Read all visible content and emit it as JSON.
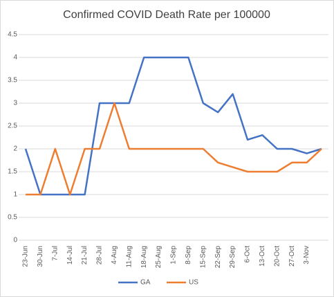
{
  "chart_data": {
    "type": "line",
    "title": "Confirmed COVID Death Rate per 100000",
    "categories": [
      "23-Jun",
      "30-Jun",
      "7-Jul",
      "14-Jul",
      "21-Jul",
      "28-Jul",
      "4-Aug",
      "11-Aug",
      "18-Aug",
      "25-Aug",
      "1-Sep",
      "8-Sep",
      "15-Sep",
      "22-Sep",
      "29-Sep",
      "6-Oct",
      "13-Oct",
      "20-Oct",
      "27-Oct",
      "3-Nov",
      null
    ],
    "series": [
      {
        "name": "GA",
        "color": "#4472c4",
        "values": [
          2,
          1,
          1,
          1,
          1,
          3,
          3,
          3,
          4,
          4,
          4,
          4,
          3,
          2.8,
          3.2,
          2.2,
          2.3,
          2,
          2,
          1.9,
          2
        ]
      },
      {
        "name": "US",
        "color": "#ed7d31",
        "values": [
          1,
          1,
          2,
          1,
          2,
          2,
          3,
          2,
          2,
          2,
          2,
          2,
          2,
          1.7,
          1.6,
          1.5,
          1.5,
          1.5,
          1.7,
          1.7,
          2
        ]
      }
    ],
    "ylim": [
      0,
      4.5
    ],
    "yticks": [
      0,
      0.5,
      1,
      1.5,
      2,
      2.5,
      3,
      3.5,
      4,
      4.5
    ],
    "grid": true,
    "legend": "bottom"
  }
}
